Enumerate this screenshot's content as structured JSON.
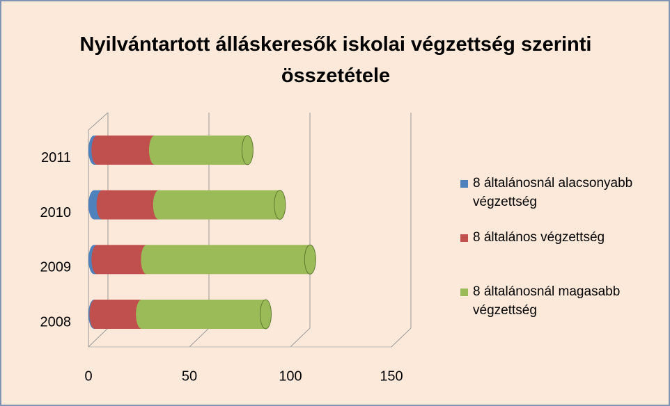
{
  "chart_data": {
    "type": "bar",
    "orientation": "horizontal",
    "stacked": true,
    "title": "Nyilvántartott álláskeresők iskolai végzettség szerinti összetétele",
    "categories": [
      "2008",
      "2009",
      "2010",
      "2011"
    ],
    "series": [
      {
        "name": "8 általánosnál alacsonyabb végzettség",
        "color": "#4f81bd",
        "values": [
          0.5,
          1.5,
          4,
          1.5
        ]
      },
      {
        "name": "8 általános végzettség",
        "color": "#c0504d",
        "values": [
          23,
          24.5,
          28,
          28.5
        ]
      },
      {
        "name": "8 általánosnál magasabb végzettség",
        "color": "#9bbb59",
        "values": [
          61.5,
          81,
          60,
          46
        ]
      }
    ],
    "xlim": [
      0,
      150
    ],
    "xticks": [
      0,
      50,
      100,
      150
    ],
    "grid": true
  }
}
